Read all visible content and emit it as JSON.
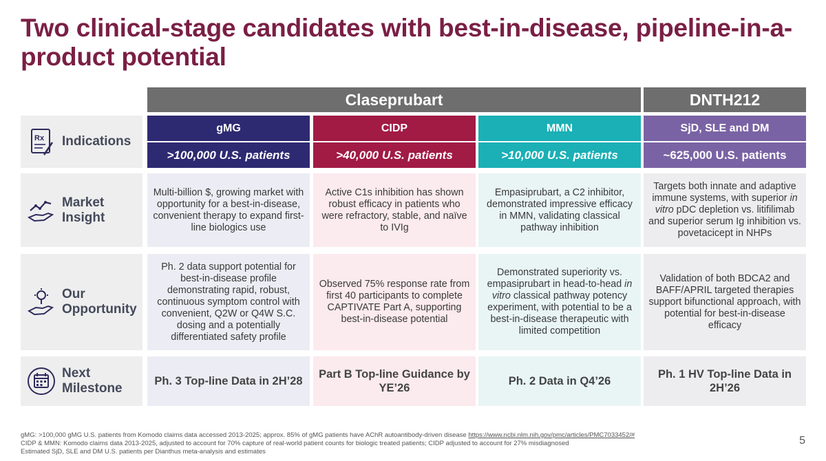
{
  "title": "Two clinical-stage candidates with best-in-disease, pipeline-in-a-product potential",
  "headers": {
    "claseprubart": "Claseprubart",
    "dnth212": "DNTH212"
  },
  "colors": {
    "title": "#7a1f45",
    "header_gray": "#6e6e6e",
    "gmg": "#2e2a72",
    "cidp": "#a11b45",
    "mmn": "#1ab0b5",
    "sjd": "#7a63a4",
    "row_label_bg": "#eeeeef"
  },
  "indications": {
    "label": "Indications",
    "icon": "prescription-icon",
    "cols": [
      {
        "name": "gMG",
        "patients": ">100,000 U.S. patients"
      },
      {
        "name": "CIDP",
        "patients": ">40,000 U.S. patients"
      },
      {
        "name": "MMN",
        "patients": ">10,000 U.S. patients"
      },
      {
        "name": "SjD, SLE and DM",
        "patients": "~625,000 U.S. patients"
      }
    ]
  },
  "market": {
    "label_line1": "Market",
    "label_line2": "Insight",
    "icon": "market-trend-hand-icon",
    "cells": [
      "Multi-billion $, growing market with opportunity for a best-in-disease, convenient therapy to expand first-line biologics use",
      "Active C1s inhibition has shown robust efficacy in patients who were refractory, stable, and naïve to IVIg",
      "Empasiprubart, a C2 inhibitor, demonstrated impressive efficacy in MMN, validating classical pathway inhibition"
    ],
    "cell4_pre": "Targets both innate and adaptive immune systems, with superior ",
    "cell4_em": "in vitro",
    "cell4_post": " pDC depletion vs. litifilimab and superior serum Ig inhibition vs. povetacicept in NHPs"
  },
  "opportunity": {
    "label_line1": "Our",
    "label_line2": "Opportunity",
    "icon": "lightbulb-hand-icon",
    "cells": [
      "Ph. 2 data support potential for best-in-disease profile demonstrating rapid, robust, continuous symptom control with convenient, Q2W or Q4W S.C. dosing and a potentially differentiated safety profile",
      "Observed 75% response rate from first 40 participants to complete CAPTIVATE Part A, supporting best-in-disease potential"
    ],
    "cell3_pre": "Demonstrated superiority vs. empasiprubart in head-to-head ",
    "cell3_em": "in vitro",
    "cell3_post": " classical pathway potency experiment, with potential to be a best-in-disease therapeutic with limited competition",
    "cell4": "Validation of both BDCA2 and BAFF/APRIL targeted therapies support bifunctional approach, with potential for best-in-disease efficacy"
  },
  "milestone": {
    "label_line1": "Next",
    "label_line2": "Milestone",
    "icon": "calendar-icon",
    "cells": [
      "Ph. 3 Top-line Data in 2H’28",
      "Part B Top-line Guidance by YE’26",
      "Ph. 2 Data in Q4’26",
      "Ph. 1 HV Top-line Data in 2H’26"
    ]
  },
  "footnotes": {
    "line1_text": "gMG: >100,000 gMG U.S. patients from Komodo claims data accessed 2013-2025; approx. 85% of gMG patients have AChR autoantibody-driven disease ",
    "line1_link": "https://www.ncbi.nlm.nih.gov/pmc/articles/PMC7033452/#",
    "line2": "CIDP & MMN: Komodo claims data 2013-2025, adjusted to account for 70% capture of real-world patient counts for biologic treated patients; CIDP adjusted to account for 27% misdiagnosed",
    "line3": "Estimated SjD, SLE and DM U.S. patients per Dianthus meta-analysis and estimates"
  },
  "page_number": "5"
}
